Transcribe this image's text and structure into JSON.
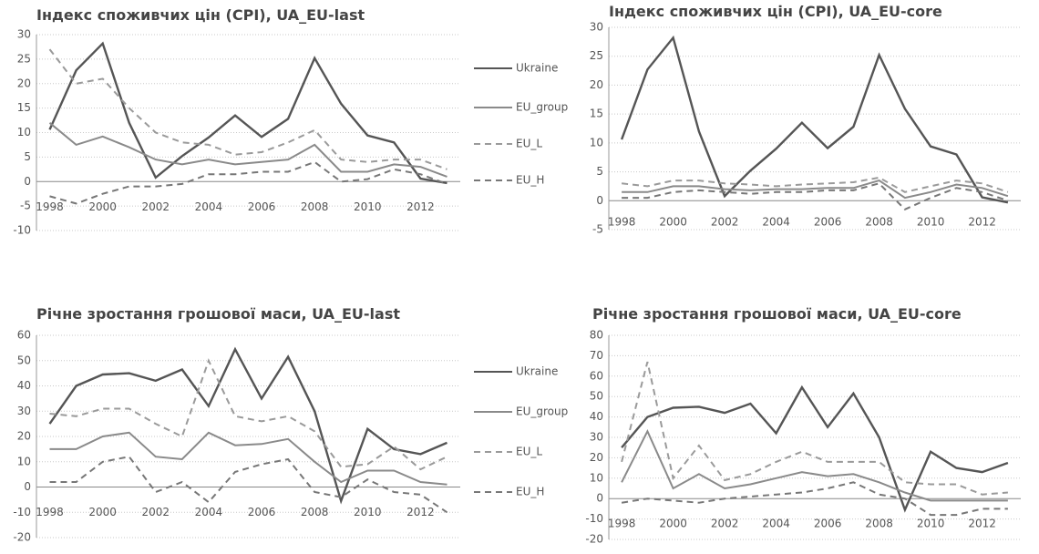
{
  "chart_data": [
    {
      "type": "line",
      "title": "Індекс споживчих цін (CPI), UA_EU-last",
      "categories": [
        "1998",
        null,
        "2000",
        null,
        "2002",
        null,
        "2004",
        null,
        "2006",
        null,
        "2008",
        null,
        "2010",
        null,
        "2012",
        null
      ],
      "ylim": [
        -10,
        30
      ],
      "yticks": [
        -10,
        -5,
        0,
        5,
        10,
        15,
        20,
        25,
        30
      ],
      "grid": true,
      "legend": "right",
      "series": [
        {
          "name": "Ukraine",
          "color": "#555555",
          "style": "solid",
          "values": [
            10.6,
            22.7,
            28.2,
            12.0,
            0.8,
            5.2,
            9.0,
            13.5,
            9.1,
            12.8,
            25.2,
            15.9,
            9.4,
            8.0,
            0.6,
            -0.3
          ]
        },
        {
          "name": "EU_group",
          "color": "#8a8a8a",
          "style": "solid",
          "values": [
            12,
            7.5,
            9.2,
            7,
            4.5,
            3.5,
            4.5,
            3.5,
            4,
            4.5,
            7.5,
            2,
            2,
            3.5,
            3,
            1
          ]
        },
        {
          "name": "EU_L",
          "color": "#9a9a9a",
          "style": "dashed",
          "values": [
            27,
            20,
            21,
            15,
            10,
            8,
            7.5,
            5.5,
            6,
            8,
            10.5,
            4.5,
            4,
            4.5,
            4.5,
            2.5
          ]
        },
        {
          "name": "EU_H",
          "color": "#777777",
          "style": "dashed",
          "values": [
            -3,
            -4.5,
            -2.5,
            -1,
            -1,
            -0.5,
            1.5,
            1.5,
            2,
            2,
            4,
            0,
            0.5,
            2.5,
            1.5,
            -0.5
          ]
        }
      ]
    },
    {
      "type": "line",
      "title": "Індекс споживчих цін (CPI), UA_EU-core",
      "categories": [
        "1998",
        null,
        "2000",
        null,
        "2002",
        null,
        "2004",
        null,
        "2006",
        null,
        "2008",
        null,
        "2010",
        null,
        "2012",
        null
      ],
      "ylim": [
        -5,
        30
      ],
      "yticks": [
        -5,
        0,
        5,
        10,
        15,
        20,
        25,
        30
      ],
      "grid": true,
      "series": [
        {
          "color": "#555555",
          "style": "solid",
          "values": [
            10.6,
            22.7,
            28.2,
            12.0,
            0.8,
            5.2,
            9.0,
            13.5,
            9.1,
            12.8,
            25.2,
            15.9,
            9.4,
            8.0,
            0.6,
            -0.3
          ]
        },
        {
          "color": "#8a8a8a",
          "style": "solid",
          "values": [
            1.5,
            1.5,
            2.5,
            2.5,
            2,
            1.8,
            2,
            2,
            2.2,
            2.2,
            3.5,
            0.5,
            1.5,
            2.8,
            2.2,
            0.8
          ]
        },
        {
          "color": "#9a9a9a",
          "style": "dashed",
          "values": [
            3,
            2.5,
            3.5,
            3.5,
            3,
            2.8,
            2.5,
            2.8,
            3,
            3.2,
            4,
            1.5,
            2.5,
            3.5,
            3,
            1.5
          ]
        },
        {
          "color": "#777777",
          "style": "dashed",
          "values": [
            0.5,
            0.5,
            1.5,
            1.8,
            1.5,
            1.2,
            1.5,
            1.5,
            1.8,
            1.8,
            3,
            -1.5,
            0.5,
            2.2,
            1.5,
            0
          ]
        }
      ]
    },
    {
      "type": "line",
      "title": "Річне зростання грошової маси, UA_EU-last",
      "categories": [
        "1998",
        null,
        "2000",
        null,
        "2002",
        null,
        "2004",
        null,
        "2006",
        null,
        "2008",
        null,
        "2010",
        null,
        "2012",
        null
      ],
      "ylim": [
        -20,
        60
      ],
      "yticks": [
        -20,
        -10,
        0,
        10,
        20,
        30,
        40,
        50,
        60
      ],
      "grid": true,
      "legend": "right",
      "series": [
        {
          "name": "Ukraine",
          "color": "#555555",
          "style": "solid",
          "values": [
            25,
            40,
            44.5,
            45,
            42,
            46.5,
            32,
            54.5,
            35,
            51.5,
            30,
            -5.5,
            23,
            15,
            13,
            17.5
          ]
        },
        {
          "name": "EU_group",
          "color": "#8a8a8a",
          "style": "solid",
          "values": [
            15,
            15,
            20,
            21.5,
            12,
            11,
            21.5,
            16.5,
            17,
            19,
            10,
            2,
            6.5,
            6.5,
            2,
            1
          ]
        },
        {
          "name": "EU_L",
          "color": "#9a9a9a",
          "style": "dashed",
          "values": [
            29,
            28,
            31,
            31,
            25,
            20,
            50,
            28,
            26,
            28,
            22,
            8,
            9,
            16,
            7,
            12
          ]
        },
        {
          "name": "EU_H",
          "color": "#777777",
          "style": "dashed",
          "values": [
            2,
            2,
            10,
            12,
            -2,
            2,
            -6,
            6,
            9,
            11,
            -2,
            -4,
            3,
            -2,
            -3,
            -10
          ]
        }
      ]
    },
    {
      "type": "line",
      "title": "Річне зростання грошової маси, UA_EU-core",
      "categories": [
        "1998",
        null,
        "2000",
        null,
        "2002",
        null,
        "2004",
        null,
        "2006",
        null,
        "2008",
        null,
        "2010",
        null,
        "2012",
        null
      ],
      "ylim": [
        -20,
        80
      ],
      "yticks": [
        -20,
        -10,
        0,
        10,
        20,
        30,
        40,
        50,
        60,
        70,
        80
      ],
      "grid": true,
      "series": [
        {
          "color": "#555555",
          "style": "solid",
          "values": [
            25,
            40,
            44.5,
            45,
            42,
            46.5,
            32,
            54.5,
            35,
            51.5,
            30,
            -5.5,
            23,
            15,
            13,
            17.5
          ]
        },
        {
          "color": "#8a8a8a",
          "style": "solid",
          "values": [
            8,
            33,
            5,
            12,
            5,
            7,
            10,
            13,
            11,
            12,
            8,
            3,
            -1,
            -1,
            -1,
            -1
          ]
        },
        {
          "color": "#9a9a9a",
          "style": "dashed",
          "values": [
            18,
            67,
            10,
            26,
            9,
            12,
            18,
            23,
            18,
            18,
            18,
            8,
            7,
            7,
            2,
            3
          ]
        },
        {
          "color": "#777777",
          "style": "dashed",
          "values": [
            -2,
            0,
            -1,
            -2,
            0,
            1,
            2,
            3,
            5,
            8,
            2,
            0,
            -8,
            -8,
            -5,
            -5
          ]
        }
      ]
    }
  ]
}
